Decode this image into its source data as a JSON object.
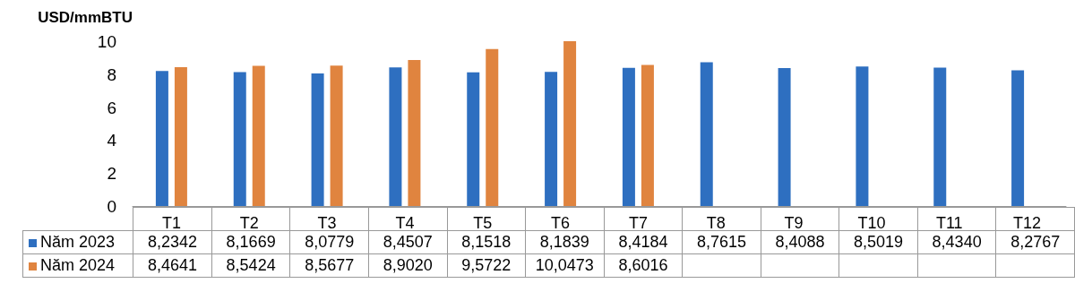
{
  "chart_data": {
    "type": "bar",
    "ylabel": "USD/mmBTU",
    "categories": [
      "T1",
      "T2",
      "T3",
      "T4",
      "T5",
      "T6",
      "T7",
      "T8",
      "T9",
      "T10",
      "T11",
      "T12"
    ],
    "series": [
      {
        "name": "Năm 2023",
        "color": "#2e6fc0",
        "values": [
          8.2342,
          8.1669,
          8.0779,
          8.4507,
          8.1518,
          8.1839,
          8.4184,
          8.7615,
          8.4088,
          8.5019,
          8.434,
          8.2767
        ],
        "value_labels": [
          "8,2342",
          "8,1669",
          "8,0779",
          "8,4507",
          "8,1518",
          "8,1839",
          "8,4184",
          "8,7615",
          "8,4088",
          "8,5019",
          "8,4340",
          "8,2767"
        ]
      },
      {
        "name": "Năm 2024",
        "color": "#e0843f",
        "values": [
          8.4641,
          8.5424,
          8.5677,
          8.902,
          9.5722,
          10.0473,
          8.6016,
          null,
          null,
          null,
          null,
          null
        ],
        "value_labels": [
          "8,4641",
          "8,5424",
          "8,5677",
          "8,9020",
          "9,5722",
          "10,0473",
          "8,6016",
          null,
          null,
          null,
          null,
          null
        ]
      }
    ],
    "ylim": [
      0,
      10.05
    ],
    "yticks": [
      0,
      2,
      4,
      6,
      8,
      10
    ],
    "grid": false,
    "legend": "bottom left"
  }
}
